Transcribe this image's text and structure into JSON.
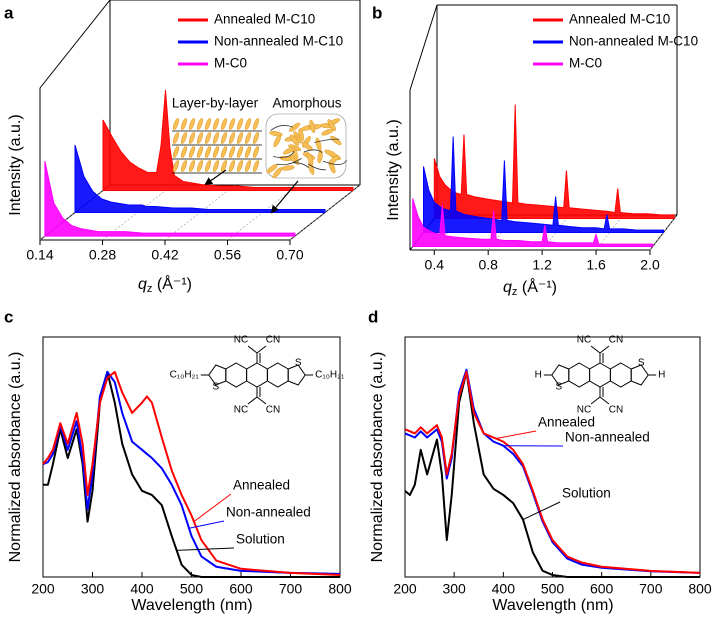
{
  "chart_data": [
    {
      "type": "waterfall",
      "label": "a",
      "y_label": "Intensity (a.u.)",
      "x_label": {
        "symbol": "q",
        "subscript": "z",
        "unit": " (Å⁻¹)"
      },
      "annotations": [
        "Layer-by-layer",
        "Amorphous"
      ],
      "xlim": [
        0.14,
        0.7
      ],
      "xticks": [
        0.14,
        0.28,
        0.42,
        0.56,
        {
          "value": 0.7,
          "label": "0.70"
        }
      ],
      "ylim": [
        0,
        1
      ],
      "x": [
        0.14,
        0.16,
        0.18,
        0.2,
        0.22,
        0.24,
        0.26,
        0.27,
        0.28,
        0.29,
        0.3,
        0.32,
        0.36,
        0.4,
        0.44,
        0.48,
        0.52,
        0.56,
        0.6,
        0.64,
        0.68,
        0.7
      ],
      "series": [
        {
          "name": "Annealed M-C10",
          "color": "#ff0000",
          "values": [
            0.47,
            0.36,
            0.26,
            0.19,
            0.15,
            0.12,
            0.12,
            0.3,
            0.67,
            0.28,
            0.1,
            0.06,
            0.04,
            0.03,
            0.03,
            0.02,
            0.02,
            0.02,
            0.02,
            0.02,
            0.02,
            0.02
          ]
        },
        {
          "name": "Non-annealed M-C10",
          "color": "#0000ff",
          "values": [
            0.45,
            0.24,
            0.14,
            0.09,
            0.07,
            0.06,
            0.05,
            0.05,
            0.05,
            0.05,
            0.04,
            0.04,
            0.03,
            0.03,
            0.02,
            0.02,
            0.02,
            0.02,
            0.02,
            0.02,
            0.02,
            0.02
          ]
        },
        {
          "name": "M-C0",
          "color": "#ff00ff",
          "values": [
            0.5,
            0.22,
            0.12,
            0.07,
            0.05,
            0.04,
            0.03,
            0.03,
            0.03,
            0.03,
            0.03,
            0.03,
            0.02,
            0.02,
            0.02,
            0.02,
            0.02,
            0.02,
            0.02,
            0.02,
            0.02,
            0.02
          ]
        }
      ]
    },
    {
      "type": "waterfall",
      "label": "b",
      "y_label": "Intensity (a.u.)",
      "x_label": {
        "symbol": "q",
        "subscript": "z",
        "unit": " (Å⁻¹)"
      },
      "xlim": [
        0.22,
        2.0
      ],
      "xticks": [
        0.4,
        0.8,
        1.2,
        1.6,
        {
          "value": 2,
          "label": "2.0"
        }
      ],
      "ylim": [
        0,
        1
      ],
      "x": [
        0.22,
        0.26,
        0.3,
        0.36,
        0.42,
        0.44,
        0.46,
        0.52,
        0.62,
        0.74,
        0.8,
        0.82,
        0.84,
        0.9,
        1.0,
        1.1,
        1.18,
        1.2,
        1.22,
        1.3,
        1.4,
        1.5,
        1.56,
        1.58,
        1.6,
        1.7,
        1.8,
        1.9,
        2.0
      ],
      "series": [
        {
          "name": "Annealed M-C10",
          "color": "#ff0000",
          "values": [
            0.5,
            0.35,
            0.28,
            0.22,
            0.2,
            0.7,
            0.2,
            0.18,
            0.16,
            0.14,
            0.13,
            0.95,
            0.13,
            0.12,
            0.11,
            0.1,
            0.09,
            0.4,
            0.09,
            0.08,
            0.07,
            0.06,
            0.05,
            0.25,
            0.05,
            0.04,
            0.04,
            0.03,
            0.03
          ]
        },
        {
          "name": "Non-annealed M-C10",
          "color": "#0000ff",
          "values": [
            0.55,
            0.35,
            0.25,
            0.2,
            0.18,
            0.8,
            0.18,
            0.15,
            0.13,
            0.11,
            0.1,
            0.6,
            0.1,
            0.09,
            0.08,
            0.07,
            0.06,
            0.3,
            0.06,
            0.05,
            0.04,
            0.04,
            0.03,
            0.15,
            0.03,
            0.03,
            0.02,
            0.02,
            0.02
          ]
        },
        {
          "name": "M-C0",
          "color": "#ff00ff",
          "values": [
            0.4,
            0.25,
            0.16,
            0.12,
            0.1,
            0.35,
            0.09,
            0.08,
            0.07,
            0.06,
            0.06,
            0.3,
            0.06,
            0.05,
            0.05,
            0.04,
            0.04,
            0.18,
            0.04,
            0.03,
            0.03,
            0.03,
            0.03,
            0.1,
            0.02,
            0.02,
            0.02,
            0.02,
            0.02
          ]
        }
      ]
    },
    {
      "type": "line",
      "label": "c",
      "y_label": "Normalized absorbance (a.u.)",
      "x_label": "Wavelength (nm)",
      "structure_labels": [
        "NC",
        "CN",
        "NC",
        "CN",
        "S",
        "S",
        "C₁₀H₂₁",
        "C₁₀H₂₁"
      ],
      "xlim": [
        200,
        800
      ],
      "xticks": [
        200,
        300,
        400,
        500,
        600,
        700,
        800
      ],
      "ylim": [
        0,
        1.17
      ],
      "x": [
        200,
        210,
        220,
        235,
        250,
        268,
        280,
        290,
        300,
        315,
        330,
        345,
        360,
        380,
        400,
        410,
        420,
        440,
        460,
        480,
        500,
        520,
        550,
        600,
        700,
        800
      ],
      "series": [
        {
          "name": "Annealed",
          "color": "#ff0000",
          "values": [
            0.55,
            0.58,
            0.62,
            0.75,
            0.65,
            0.8,
            0.65,
            0.4,
            0.55,
            0.85,
            0.97,
            1.0,
            0.9,
            0.8,
            0.85,
            0.88,
            0.85,
            0.68,
            0.52,
            0.4,
            0.3,
            0.18,
            0.08,
            0.04,
            0.02,
            0.01
          ]
        },
        {
          "name": "Non-annealed",
          "color": "#0000ff",
          "values": [
            0.55,
            0.56,
            0.6,
            0.74,
            0.62,
            0.76,
            0.58,
            0.33,
            0.5,
            0.88,
            1.0,
            0.95,
            0.8,
            0.66,
            0.62,
            0.6,
            0.58,
            0.53,
            0.45,
            0.35,
            0.2,
            0.1,
            0.05,
            0.03,
            0.02,
            0.015
          ]
        },
        {
          "name": "Solution",
          "color": "#000000",
          "values": [
            0.45,
            0.45,
            0.55,
            0.72,
            0.58,
            0.72,
            0.55,
            0.27,
            0.42,
            0.85,
            1.0,
            0.85,
            0.65,
            0.5,
            0.42,
            0.41,
            0.4,
            0.35,
            0.2,
            0.06,
            0.01,
            0,
            0,
            0,
            0,
            0
          ]
        }
      ]
    },
    {
      "type": "line",
      "label": "d",
      "y_label": "Normalized absorbance (a.u.)",
      "x_label": "Wavelength (nm)",
      "structure_labels": [
        "NC",
        "CN",
        "NC",
        "CN",
        "S",
        "S",
        "H",
        "H"
      ],
      "xlim": [
        200,
        800
      ],
      "xticks": [
        200,
        300,
        400,
        500,
        600,
        700,
        800
      ],
      "ylim": [
        0,
        1.17
      ],
      "x": [
        200,
        210,
        220,
        232,
        245,
        265,
        275,
        285,
        295,
        310,
        325,
        340,
        360,
        380,
        400,
        420,
        440,
        460,
        480,
        500,
        530,
        560,
        600,
        700,
        800
      ],
      "series": [
        {
          "name": "Annealed",
          "color": "#ff0000",
          "values": [
            0.72,
            0.71,
            0.7,
            0.73,
            0.7,
            0.74,
            0.68,
            0.5,
            0.6,
            0.88,
            1.0,
            0.8,
            0.7,
            0.68,
            0.66,
            0.62,
            0.55,
            0.42,
            0.28,
            0.18,
            0.1,
            0.07,
            0.05,
            0.03,
            0.02
          ]
        },
        {
          "name": "Non-annealed",
          "color": "#0000ff",
          "values": [
            0.7,
            0.69,
            0.68,
            0.71,
            0.68,
            0.72,
            0.66,
            0.48,
            0.58,
            0.9,
            1.01,
            0.82,
            0.7,
            0.66,
            0.64,
            0.6,
            0.54,
            0.41,
            0.27,
            0.17,
            0.09,
            0.06,
            0.045,
            0.028,
            0.02
          ]
        },
        {
          "name": "Solution",
          "color": "#000000",
          "values": [
            0.42,
            0.4,
            0.45,
            0.62,
            0.5,
            0.67,
            0.5,
            0.18,
            0.4,
            0.85,
            1.0,
            0.75,
            0.5,
            0.43,
            0.4,
            0.36,
            0.28,
            0.12,
            0.03,
            0.01,
            0,
            0,
            0,
            0,
            0
          ]
        }
      ]
    }
  ]
}
